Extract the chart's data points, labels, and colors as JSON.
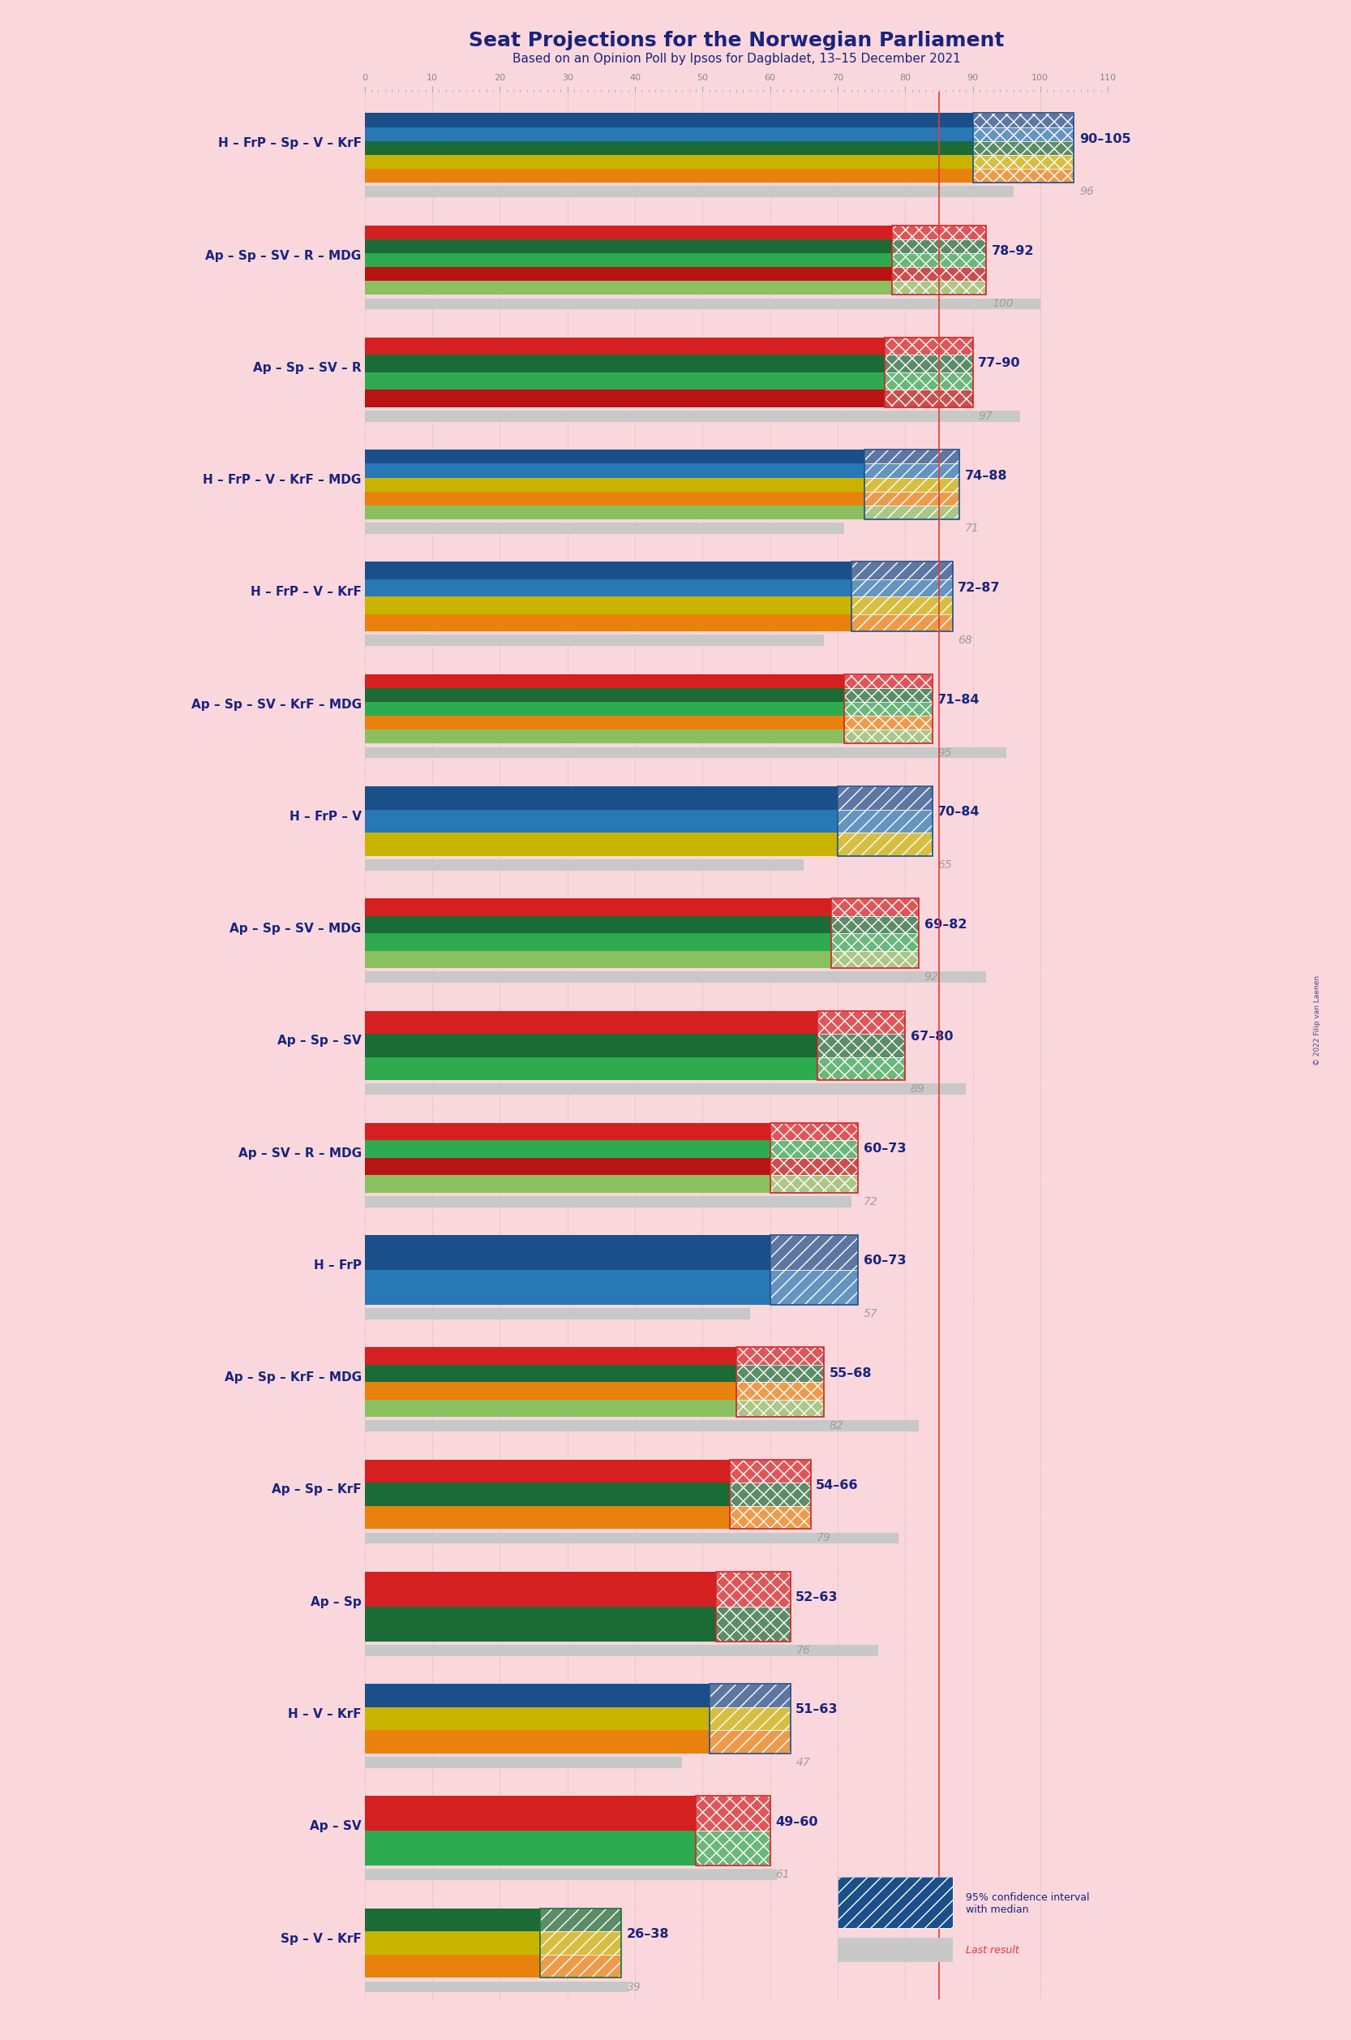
{
  "title": "Seat Projections for the Norwegian Parliament",
  "subtitle": "Based on an Opinion Poll by Ipsos for Dagbladet, 13–15 December 2021",
  "background_color": "#f9d7dc",
  "majority_line": 85,
  "coalitions": [
    {
      "label": "H – FrP – Sp – V – KrF",
      "ci_low": 90,
      "ci_high": 105,
      "last": 96,
      "colors": [
        "#1b4f8a",
        "#2778b5",
        "#1a6b35",
        "#c8b400",
        "#e8820c"
      ],
      "hatch": "xx",
      "underline": false
    },
    {
      "label": "Ap – Sp – SV – R – MDG",
      "ci_low": 78,
      "ci_high": 92,
      "last": 100,
      "colors": [
        "#d42020",
        "#1a6b35",
        "#2eaa50",
        "#b81414",
        "#8ac060"
      ],
      "hatch": "xx",
      "underline": false
    },
    {
      "label": "Ap – Sp – SV – R",
      "ci_low": 77,
      "ci_high": 90,
      "last": 97,
      "colors": [
        "#d42020",
        "#1a6b35",
        "#2eaa50",
        "#b81414"
      ],
      "hatch": "xx",
      "underline": false
    },
    {
      "label": "H – FrP – V – KrF – MDG",
      "ci_low": 74,
      "ci_high": 88,
      "last": 71,
      "colors": [
        "#1b4f8a",
        "#2778b5",
        "#c8b400",
        "#e8820c",
        "#8ac060"
      ],
      "hatch": "//",
      "underline": false
    },
    {
      "label": "H – FrP – V – KrF",
      "ci_low": 72,
      "ci_high": 87,
      "last": 68,
      "colors": [
        "#1b4f8a",
        "#2778b5",
        "#c8b400",
        "#e8820c"
      ],
      "hatch": "//",
      "underline": false
    },
    {
      "label": "Ap – Sp – SV – KrF – MDG",
      "ci_low": 71,
      "ci_high": 84,
      "last": 95,
      "colors": [
        "#d42020",
        "#1a6b35",
        "#2eaa50",
        "#e8820c",
        "#8ac060"
      ],
      "hatch": "xx",
      "underline": false
    },
    {
      "label": "H – FrP – V",
      "ci_low": 70,
      "ci_high": 84,
      "last": 65,
      "colors": [
        "#1b4f8a",
        "#2778b5",
        "#c8b400"
      ],
      "hatch": "//",
      "underline": false
    },
    {
      "label": "Ap – Sp – SV – MDG",
      "ci_low": 69,
      "ci_high": 82,
      "last": 92,
      "colors": [
        "#d42020",
        "#1a6b35",
        "#2eaa50",
        "#8ac060"
      ],
      "hatch": "xx",
      "underline": false
    },
    {
      "label": "Ap – Sp – SV",
      "ci_low": 67,
      "ci_high": 80,
      "last": 89,
      "colors": [
        "#d42020",
        "#1a6b35",
        "#2eaa50"
      ],
      "hatch": "xx",
      "underline": false
    },
    {
      "label": "Ap – SV – R – MDG",
      "ci_low": 60,
      "ci_high": 73,
      "last": 72,
      "colors": [
        "#d42020",
        "#2eaa50",
        "#b81414",
        "#8ac060"
      ],
      "hatch": "xx",
      "underline": false
    },
    {
      "label": "H – FrP",
      "ci_low": 60,
      "ci_high": 73,
      "last": 57,
      "colors": [
        "#1b4f8a",
        "#2778b5"
      ],
      "hatch": "//",
      "underline": false
    },
    {
      "label": "Ap – Sp – KrF – MDG",
      "ci_low": 55,
      "ci_high": 68,
      "last": 82,
      "colors": [
        "#d42020",
        "#1a6b35",
        "#e8820c",
        "#8ac060"
      ],
      "hatch": "xx",
      "underline": false
    },
    {
      "label": "Ap – Sp – KrF",
      "ci_low": 54,
      "ci_high": 66,
      "last": 79,
      "colors": [
        "#d42020",
        "#1a6b35",
        "#e8820c"
      ],
      "hatch": "xx",
      "underline": false
    },
    {
      "label": "Ap – Sp",
      "ci_low": 52,
      "ci_high": 63,
      "last": 76,
      "colors": [
        "#d42020",
        "#1a6b35"
      ],
      "hatch": "xx",
      "underline": false
    },
    {
      "label": "H – V – KrF",
      "ci_low": 51,
      "ci_high": 63,
      "last": 47,
      "colors": [
        "#1b4f8a",
        "#c8b400",
        "#e8820c"
      ],
      "hatch": "//",
      "underline": false
    },
    {
      "label": "Ap – SV",
      "ci_low": 49,
      "ci_high": 60,
      "last": 61,
      "colors": [
        "#d42020",
        "#2eaa50"
      ],
      "hatch": "xx",
      "underline": true
    },
    {
      "label": "Sp – V – KrF",
      "ci_low": 26,
      "ci_high": 38,
      "last": 39,
      "colors": [
        "#1a6b35",
        "#c8b400",
        "#e8820c"
      ],
      "hatch": "//",
      "underline": false
    }
  ],
  "majority_color": "#e53935",
  "label_color": "#1a237e",
  "last_color": "#9e9e9e",
  "gray_bar_color": "#c8c8c8",
  "legend_ci_color": "#1b4f8a"
}
